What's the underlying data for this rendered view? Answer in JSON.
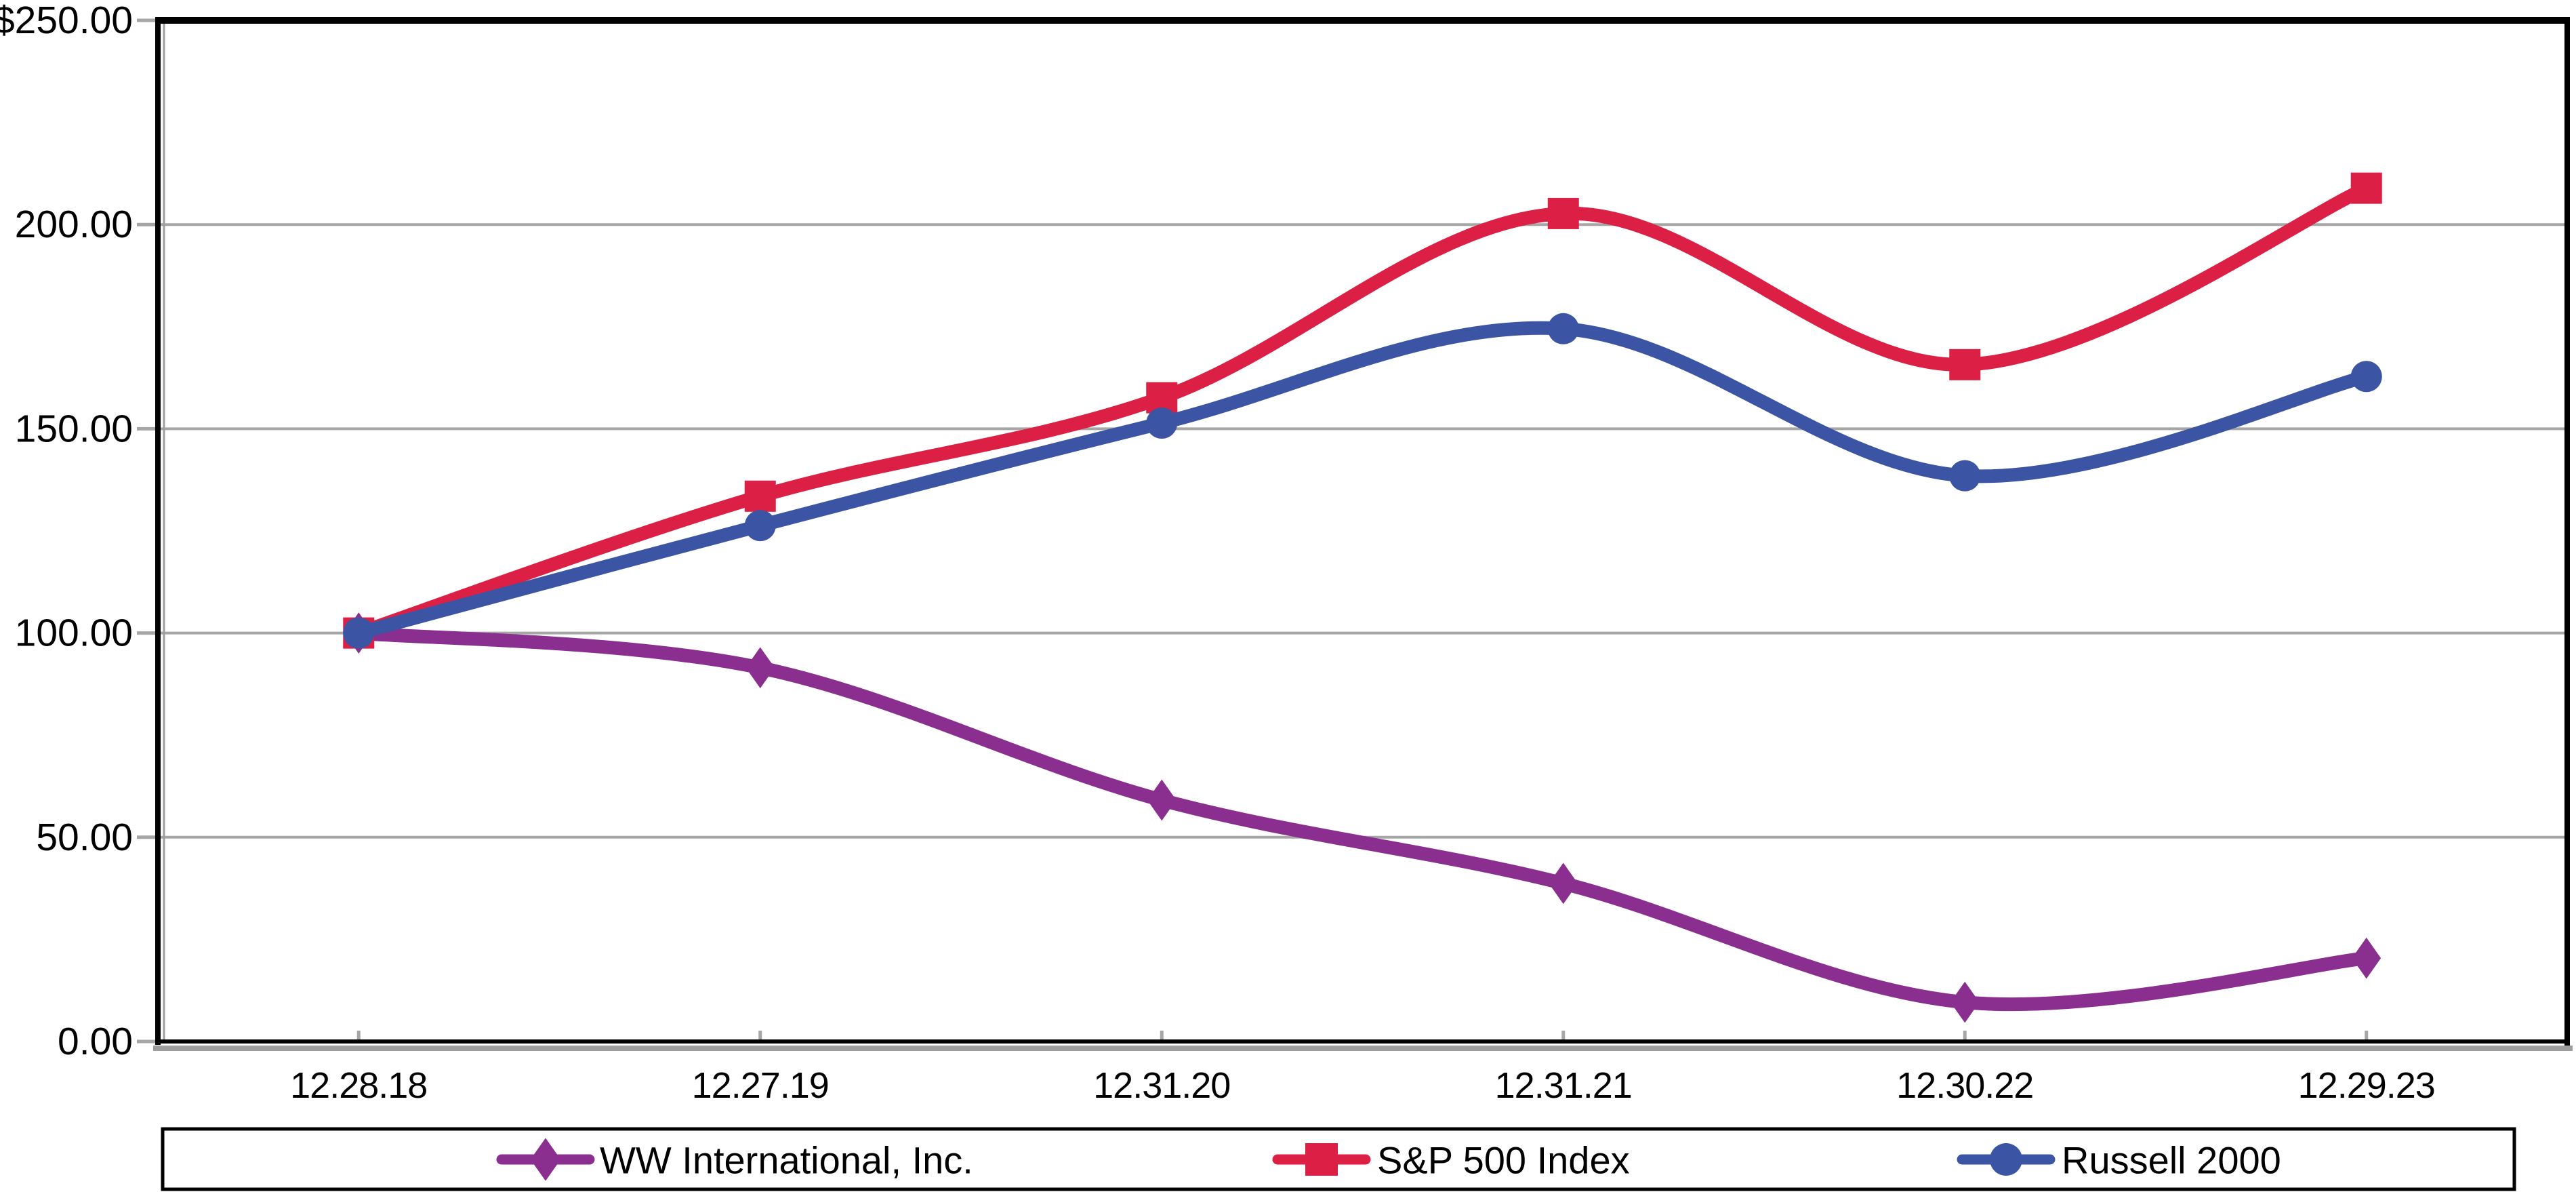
{
  "chart_data": {
    "type": "line",
    "smoothed": true,
    "categories": [
      "12.28.18",
      "12.27.19",
      "12.31.20",
      "12.31.21",
      "12.30.22",
      "12.29.23"
    ],
    "series": [
      {
        "name": "WW International, Inc.",
        "marker": "diamond",
        "color": "#8A2E8F",
        "values": [
          100.0,
          91.5,
          59.1,
          38.7,
          9.6,
          20.4
        ]
      },
      {
        "name": "S&P 500 Index",
        "marker": "square",
        "color": "#DC2045",
        "values": [
          100.0,
          133.5,
          157.6,
          202.7,
          165.7,
          208.9
        ]
      },
      {
        "name": "Russell 2000",
        "marker": "circle",
        "color": "#3B54A4",
        "values": [
          100.0,
          126.3,
          151.4,
          174.5,
          138.5,
          162.8
        ]
      }
    ],
    "y_axis": {
      "min": 0,
      "max": 250,
      "tick_values": [
        250,
        200,
        150,
        100,
        50,
        0
      ],
      "tick_labels": [
        "$250.00",
        "200.00",
        "150.00",
        "100.00",
        "50.00",
        "0.00"
      ]
    },
    "grid": true,
    "legend_position": "bottom",
    "style": {
      "background": "#FFFFFF",
      "gridline_color": "#A6A6A6",
      "tick_color": "#A6A6A6",
      "axis_color": "#000000",
      "axis_shadow_color": "#9E9E9E",
      "legend_border_color": "#000000",
      "text_color": "#000000"
    }
  }
}
